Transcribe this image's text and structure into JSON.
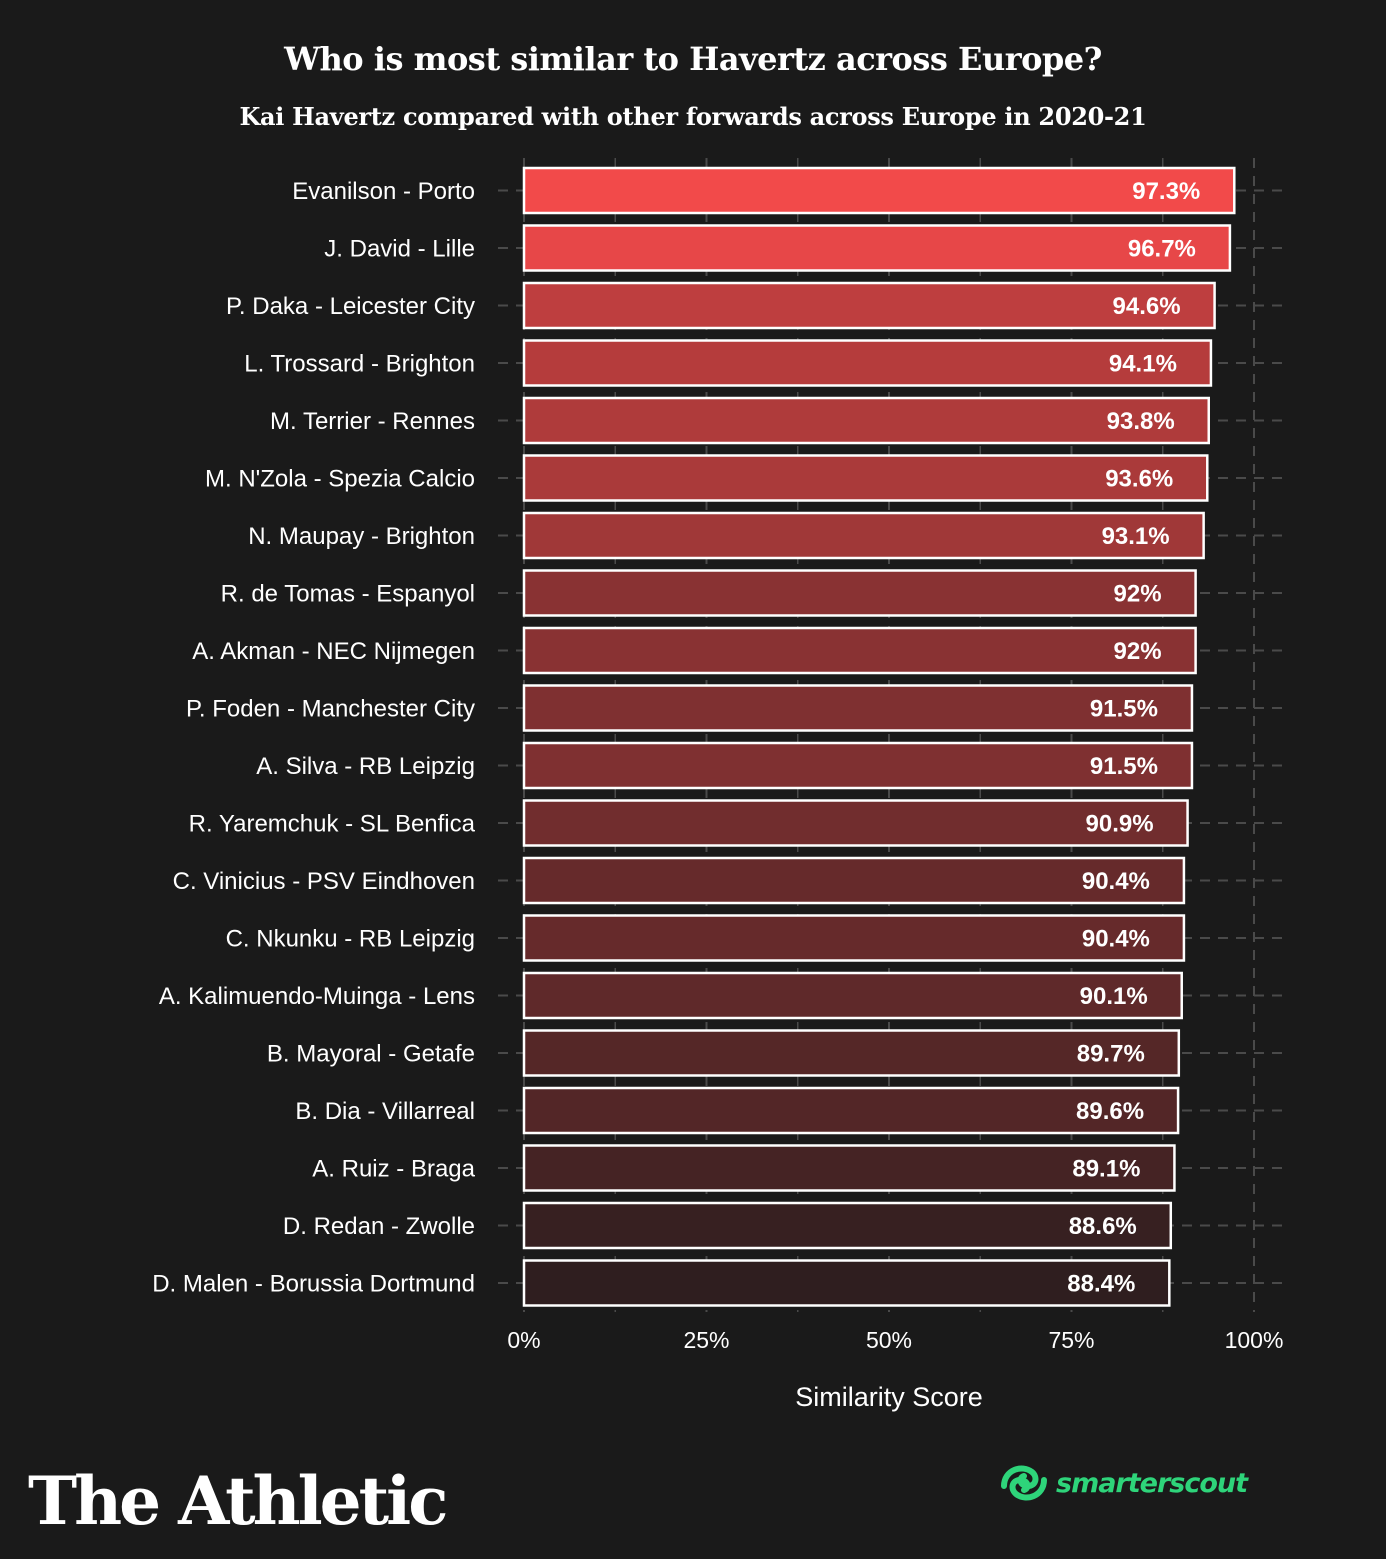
{
  "title": "Who is most similar to Havertz across Europe?",
  "subtitle": "Kai Havertz compared with other forwards across Europe in 2020-21",
  "chart_data": {
    "type": "bar",
    "orientation": "horizontal",
    "categories": [
      "Evanilson - Porto",
      "J. David - Lille",
      "P. Daka - Leicester City",
      "L. Trossard - Brighton",
      "M. Terrier - Rennes",
      "M. N'Zola - Spezia Calcio",
      "N. Maupay - Brighton",
      "R. de Tomas - Espanyol",
      "A. Akman - NEC Nijmegen",
      "P. Foden - Manchester City",
      "A. Silva - RB Leipzig",
      "R. Yaremchuk - SL Benfica",
      "C. Vinicius - PSV Eindhoven",
      "C. Nkunku - RB Leipzig",
      "A. Kalimuendo-Muinga - Lens",
      "B. Mayoral - Getafe",
      "B. Dia - Villarreal",
      "A. Ruiz - Braga",
      "D. Redan - Zwolle",
      "D. Malen - Borussia Dortmund"
    ],
    "values": [
      97.3,
      96.7,
      94.6,
      94.1,
      93.8,
      93.6,
      93.1,
      92,
      92,
      91.5,
      91.5,
      90.9,
      90.4,
      90.4,
      90.1,
      89.7,
      89.6,
      89.1,
      88.6,
      88.4
    ],
    "value_labels": [
      "97.3%",
      "96.7%",
      "94.6%",
      "94.1%",
      "93.8%",
      "93.6%",
      "93.1%",
      "92%",
      "92%",
      "91.5%",
      "91.5%",
      "90.9%",
      "90.4%",
      "90.4%",
      "90.1%",
      "89.7%",
      "89.6%",
      "89.1%",
      "88.6%",
      "88.4%"
    ],
    "xlabel": "Similarity Score",
    "ylabel": "",
    "xlim": [
      0,
      100
    ],
    "x_ticks": [
      0,
      25,
      50,
      75,
      100
    ],
    "x_tick_labels": [
      "0%",
      "25%",
      "50%",
      "75%",
      "100%"
    ],
    "grid": true,
    "colors": {
      "high": "#f24a4a",
      "low": "#2f1e1f",
      "bar_border": "#ffffff",
      "grid": "#4a4a4a"
    }
  },
  "footer": {
    "brand": "The Athletic",
    "partner": "smarterscout",
    "partner_color": "#2ed47a"
  }
}
